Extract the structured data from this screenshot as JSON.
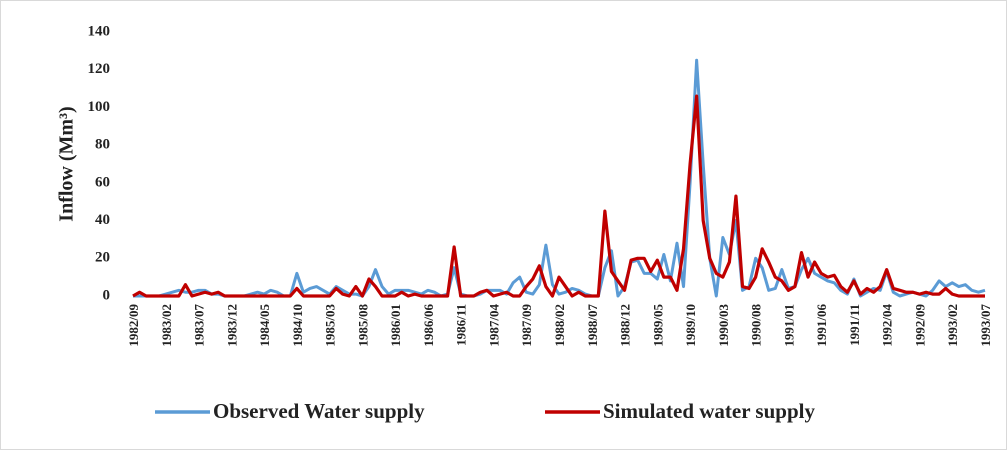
{
  "chart_data": {
    "type": "line",
    "y_label": "Inflow (Mm³)",
    "categories": [
      "1982/09",
      null,
      null,
      null,
      null,
      "1983/02",
      null,
      null,
      null,
      null,
      "1983/07",
      null,
      null,
      null,
      null,
      "1983/12",
      null,
      null,
      null,
      null,
      "1984/05",
      null,
      null,
      null,
      null,
      "1984/10",
      null,
      null,
      null,
      null,
      "1985/03",
      null,
      null,
      null,
      null,
      "1985/08",
      null,
      null,
      null,
      null,
      "1986/01",
      null,
      null,
      null,
      null,
      "1986/06",
      null,
      null,
      null,
      null,
      "1986/11",
      null,
      null,
      null,
      null,
      "1987/04",
      null,
      null,
      null,
      null,
      "1987/09",
      null,
      null,
      null,
      null,
      "1988/02",
      null,
      null,
      null,
      null,
      "1988/07",
      null,
      null,
      null,
      null,
      "1988/12",
      null,
      null,
      null,
      null,
      "1989/05",
      null,
      null,
      null,
      null,
      "1989/10",
      null,
      null,
      null,
      null,
      "1990/03",
      null,
      null,
      null,
      null,
      "1990/08",
      null,
      null,
      null,
      null,
      "1991/01",
      null,
      null,
      null,
      null,
      "1991/06",
      null,
      null,
      null,
      null,
      "1991/11",
      null,
      null,
      null,
      null,
      "1992/04",
      null,
      null,
      null,
      null,
      "1992/09",
      null,
      null,
      null,
      null,
      "1993/02",
      null,
      null,
      null,
      null,
      "1993/07"
    ],
    "series": [
      {
        "name": "Observed Water supply",
        "color": "#5b9bd5",
        "values": [
          0,
          0,
          0,
          0,
          0,
          1,
          2,
          3,
          2,
          2,
          3,
          3,
          1,
          1,
          0,
          0,
          0,
          0,
          1,
          2,
          1,
          3,
          2,
          0,
          0,
          12,
          2,
          4,
          5,
          3,
          1,
          5,
          3,
          1,
          1,
          0,
          5,
          14,
          5,
          1,
          3,
          3,
          3,
          2,
          1,
          3,
          2,
          0,
          1,
          15,
          1,
          0,
          0,
          1,
          3,
          3,
          3,
          1,
          7,
          10,
          2,
          1,
          6,
          27,
          6,
          1,
          2,
          4,
          3,
          1,
          0,
          0,
          15,
          24,
          0,
          5,
          18,
          19,
          12,
          12,
          9,
          22,
          8,
          28,
          5,
          60,
          125,
          70,
          20,
          0,
          31,
          22,
          40,
          3,
          5,
          20,
          15,
          3,
          4,
          14,
          4,
          5,
          14,
          20,
          12,
          10,
          8,
          7,
          3,
          1,
          9,
          0,
          2,
          4,
          3,
          13,
          2,
          0,
          1,
          2,
          1,
          0,
          3,
          8,
          5,
          7,
          5,
          6,
          3,
          2,
          3
        ]
      },
      {
        "name": "Simulated water supply",
        "color": "#c00000",
        "values": [
          0,
          2,
          0,
          0,
          0,
          0,
          0,
          0,
          6,
          0,
          1,
          2,
          1,
          2,
          0,
          0,
          0,
          0,
          0,
          0,
          0,
          0,
          0,
          0,
          0,
          4,
          0,
          0,
          0,
          0,
          0,
          4,
          1,
          0,
          5,
          0,
          9,
          5,
          0,
          0,
          0,
          2,
          0,
          1,
          0,
          0,
          0,
          0,
          0,
          26,
          0,
          0,
          0,
          2,
          3,
          0,
          1,
          2,
          0,
          0,
          5,
          9,
          16,
          5,
          0,
          10,
          5,
          0,
          2,
          0,
          0,
          0,
          45,
          13,
          8,
          3,
          19,
          20,
          20,
          13,
          19,
          10,
          10,
          3,
          25,
          70,
          106,
          40,
          20,
          12,
          10,
          18,
          53,
          5,
          4,
          10,
          25,
          18,
          10,
          8,
          3,
          5,
          23,
          10,
          18,
          12,
          10,
          11,
          5,
          2,
          8,
          1,
          4,
          2,
          5,
          14,
          4,
          3,
          2,
          2,
          1,
          2,
          1,
          1,
          4,
          1,
          0,
          0,
          0,
          0,
          0
        ]
      }
    ],
    "ylim": [
      0,
      140
    ],
    "yticks": [
      0,
      20,
      40,
      60,
      80,
      100,
      120,
      140
    ],
    "grid": false,
    "legend": "bottom"
  }
}
